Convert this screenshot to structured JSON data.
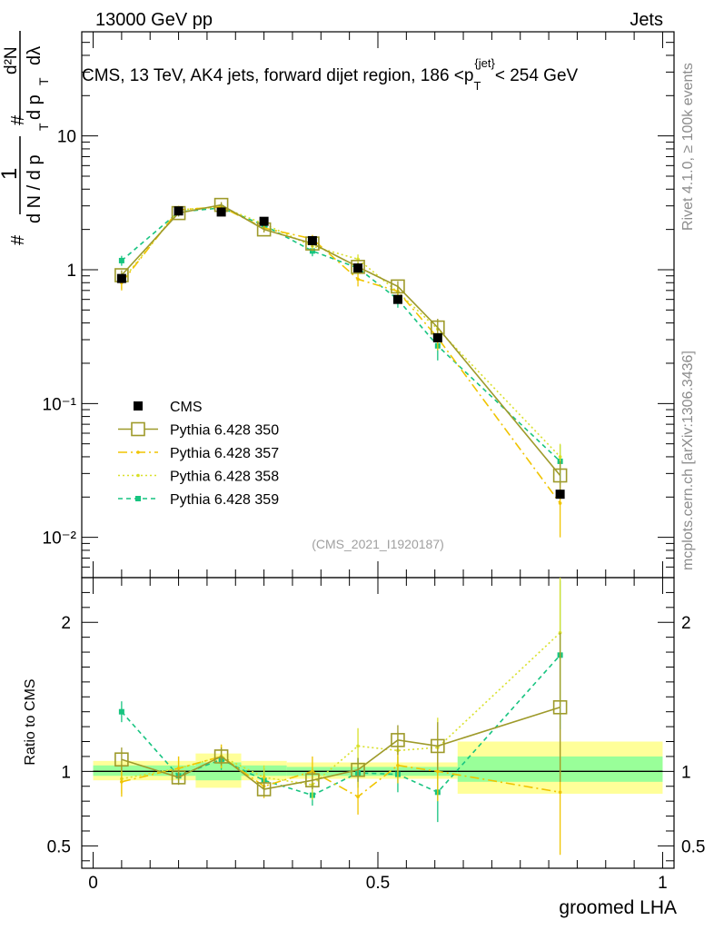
{
  "header": {
    "left": "13000 GeV pp",
    "right": "Jets"
  },
  "side_labels": {
    "rivet": "Rivet 4.1.0, ≥ 100k events",
    "mcplots": "mcplots.cern.ch [arXiv:1306.3436]"
  },
  "colors": {
    "cms": "#000000",
    "p350": "#9e9a2a",
    "p357": "#f0c400",
    "p358": "#d9e02a",
    "p359": "#17c480",
    "band_inner": "#99ff99",
    "band_outer": "#ffff99"
  },
  "chart_data": [
    {
      "type": "line",
      "title": "CMS, 13 TeV, AK4 jets, forward dijet region, 186 <p_T^{jet}< 254 GeV",
      "title_parts": {
        "pre": "CMS, 13 TeV, AK4 jets, forward dijet region, 186 <p",
        "sup": "{jet}",
        "sub": "T",
        "post": "< 254 GeV"
      },
      "ylabel": "1/(dN/dp_T) d²N/(dp_T dλ)",
      "ylabel_parts": {
        "hash": "#",
        "one": "1",
        "dn": "d N / d p",
        "t": "T",
        "d2n": "d²N",
        "dpt": "d p",
        "dl": "dλ"
      },
      "yscale": "log",
      "ylim": [
        0.005,
        60
      ],
      "xlim": [
        -0.02,
        1.02
      ],
      "ytick_labels": [
        "10⁻²",
        "10⁻¹",
        "1",
        "10"
      ],
      "ytick_values": [
        0.01,
        0.1,
        1,
        10
      ],
      "watermark": "(CMS_2021_I1920187)",
      "legend_position": "lower-left",
      "x": [
        0.05,
        0.15,
        0.225,
        0.3,
        0.385,
        0.465,
        0.535,
        0.605,
        0.82
      ],
      "xerr": [
        [
          0.0,
          0.1
        ],
        [
          0.1,
          0.2
        ],
        [
          0.2,
          0.25
        ],
        [
          0.25,
          0.35
        ],
        [
          0.35,
          0.42
        ],
        [
          0.42,
          0.5
        ],
        [
          0.5,
          0.57
        ],
        [
          0.57,
          0.64
        ],
        [
          0.64,
          1.0
        ]
      ],
      "series": [
        {
          "name": "CMS",
          "key": "cms",
          "style": "square",
          "values": [
            0.86,
            2.75,
            2.7,
            2.3,
            1.65,
            1.03,
            0.6,
            0.31,
            0.021
          ],
          "err": [
            0.05,
            0.12,
            0.11,
            0.1,
            0.08,
            0.05,
            0.04,
            0.02,
            0.0015
          ]
        },
        {
          "name": "Pythia 6.428 350",
          "key": "p350",
          "style": "open-square",
          "values": [
            0.91,
            2.65,
            3.05,
            2.0,
            1.57,
            1.05,
            0.75,
            0.37,
            0.029
          ],
          "err": [
            0.08,
            0.15,
            0.15,
            0.1,
            0.09,
            0.08,
            0.07,
            0.06,
            0.008
          ]
        },
        {
          "name": "Pythia 6.428 357",
          "key": "p357",
          "style": "dashdot",
          "values": [
            0.8,
            2.8,
            2.95,
            2.05,
            1.7,
            0.85,
            0.69,
            0.31,
            0.018
          ],
          "err": [
            0.1,
            0.2,
            0.2,
            0.15,
            0.12,
            0.1,
            0.08,
            0.06,
            0.008
          ]
        },
        {
          "name": "Pythia 6.428 358",
          "key": "p358",
          "style": "dotted",
          "values": [
            0.82,
            2.8,
            2.95,
            2.2,
            1.5,
            1.2,
            0.68,
            0.36,
            0.04
          ],
          "err": [
            0.1,
            0.2,
            0.2,
            0.15,
            0.12,
            0.1,
            0.08,
            0.06,
            0.01
          ]
        },
        {
          "name": "Pythia 6.428 359",
          "key": "p359",
          "style": "dashed-dot",
          "values": [
            1.17,
            2.7,
            2.9,
            2.15,
            1.38,
            1.03,
            0.6,
            0.27,
            0.037
          ],
          "err": [
            0.1,
            0.2,
            0.2,
            0.15,
            0.12,
            0.1,
            0.08,
            0.06,
            0.012
          ]
        }
      ]
    },
    {
      "type": "line",
      "title": "",
      "ylabel": "Ratio to CMS",
      "xlabel": "groomed LHA",
      "ylim": [
        0.35,
        2.3
      ],
      "xlim": [
        -0.02,
        1.02
      ],
      "ytick_labels": [
        "0.5",
        "1",
        "2"
      ],
      "ytick_values": [
        0.5,
        1,
        2
      ],
      "xtick_labels": [
        "0",
        "0.5",
        "1"
      ],
      "xtick_values": [
        0,
        0.5,
        1
      ],
      "bands": [
        {
          "x0": 0.0,
          "x1": 0.18,
          "inner": [
            0.97,
            1.04
          ],
          "outer": [
            0.94,
            1.07
          ]
        },
        {
          "x0": 0.18,
          "x1": 0.26,
          "inner": [
            0.94,
            1.06
          ],
          "outer": [
            0.89,
            1.12
          ]
        },
        {
          "x0": 0.26,
          "x1": 0.34,
          "inner": [
            0.97,
            1.04
          ],
          "outer": [
            0.94,
            1.07
          ]
        },
        {
          "x0": 0.34,
          "x1": 0.64,
          "inner": [
            0.97,
            1.03
          ],
          "outer": [
            0.95,
            1.06
          ]
        },
        {
          "x0": 0.64,
          "x1": 1.0,
          "inner": [
            0.93,
            1.1
          ],
          "outer": [
            0.85,
            1.2
          ]
        }
      ],
      "series": [
        {
          "name": "Pythia 6.428 350",
          "key": "p350",
          "style": "open-square",
          "values": [
            1.08,
            0.96,
            1.1,
            0.88,
            0.94,
            1.01,
            1.21,
            1.17,
            1.43
          ],
          "err": [
            0.08,
            0.05,
            0.06,
            0.05,
            0.06,
            0.08,
            0.1,
            0.16,
            0.5
          ]
        },
        {
          "name": "Pythia 6.428 357",
          "key": "p357",
          "style": "dashdot",
          "values": [
            0.93,
            1.02,
            1.1,
            0.9,
            1.0,
            0.83,
            1.04,
            1.0,
            0.86
          ],
          "err": [
            0.1,
            0.08,
            0.08,
            0.08,
            0.1,
            0.12,
            0.12,
            0.2,
            0.42
          ]
        },
        {
          "name": "Pythia 6.428 358",
          "key": "p358",
          "style": "dotted",
          "values": [
            0.95,
            1.02,
            1.1,
            0.96,
            0.91,
            1.17,
            1.14,
            1.16,
            1.93
          ],
          "err": [
            0.1,
            0.08,
            0.08,
            0.08,
            0.1,
            0.12,
            0.12,
            0.2,
            0.5
          ]
        },
        {
          "name": "Pythia 6.428 359",
          "key": "p359",
          "style": "dashed-dot",
          "values": [
            1.4,
            0.97,
            1.08,
            0.94,
            0.84,
            0.99,
            0.98,
            0.86,
            1.78
          ],
          "err": [
            0.07,
            0.06,
            0.07,
            0.08,
            0.07,
            0.1,
            0.12,
            0.2,
            0.5
          ]
        }
      ]
    }
  ]
}
